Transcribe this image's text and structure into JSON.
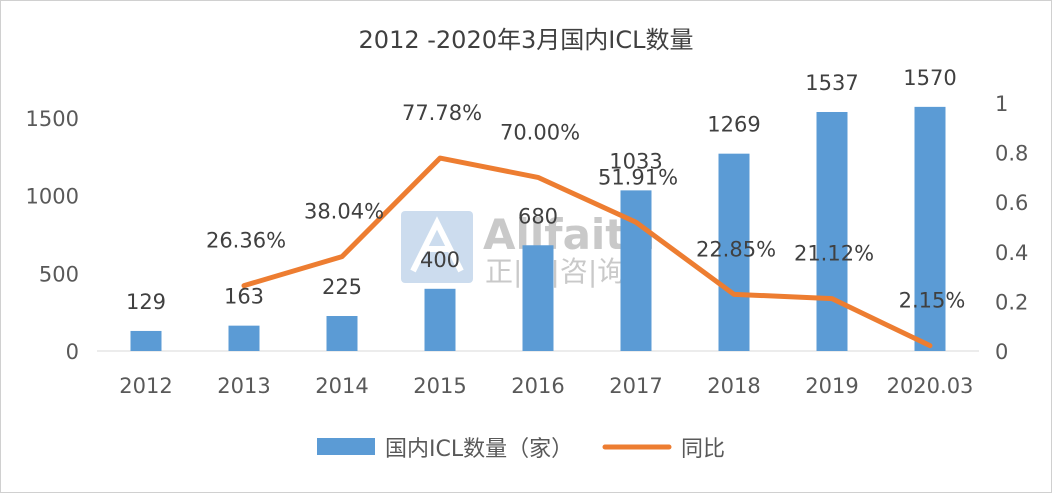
{
  "chart_data": {
    "type": "bar+line",
    "title": "2012 -2020年3月国内ICL数量",
    "categories": [
      "2012",
      "2013",
      "2014",
      "2015",
      "2016",
      "2017",
      "2018",
      "2019",
      "2020.03"
    ],
    "series": [
      {
        "name": "国内ICL数量（家）",
        "type": "bar",
        "axis": "left",
        "color": "#5B9BD5",
        "values": [
          129,
          163,
          225,
          400,
          680,
          1033,
          1269,
          1537,
          1570
        ],
        "labels": [
          "129",
          "163",
          "225",
          "400",
          "680",
          "1033",
          "1269",
          "1537",
          "1570"
        ]
      },
      {
        "name": "同比",
        "type": "line",
        "axis": "right",
        "color": "#ED7D31",
        "values": [
          null,
          0.2636,
          0.3804,
          0.7778,
          0.7,
          0.5191,
          0.2285,
          0.2112,
          0.0215
        ],
        "labels": [
          "",
          "26.36%",
          "38.04%",
          "77.78%",
          "70.00%",
          "51.91%",
          "22.85%",
          "21.12%",
          "2.15%"
        ]
      }
    ],
    "y_left": {
      "ylim": [
        0,
        1600
      ],
      "ticks": [
        "0",
        "500",
        "1000",
        "1500"
      ],
      "tick_values": [
        0,
        500,
        1000,
        1500
      ]
    },
    "y_right": {
      "ylim": [
        0,
        1.0
      ],
      "ticks": [
        "0",
        "0.2",
        "0.4",
        "0.6",
        "0.8",
        "1"
      ],
      "tick_values": [
        0,
        0.2,
        0.4,
        0.6,
        0.8,
        1.0
      ]
    },
    "grid": false,
    "legend": "bottom"
  },
  "watermark": {
    "text": "Allfaith",
    "subtext": "正|略|咨|询"
  }
}
